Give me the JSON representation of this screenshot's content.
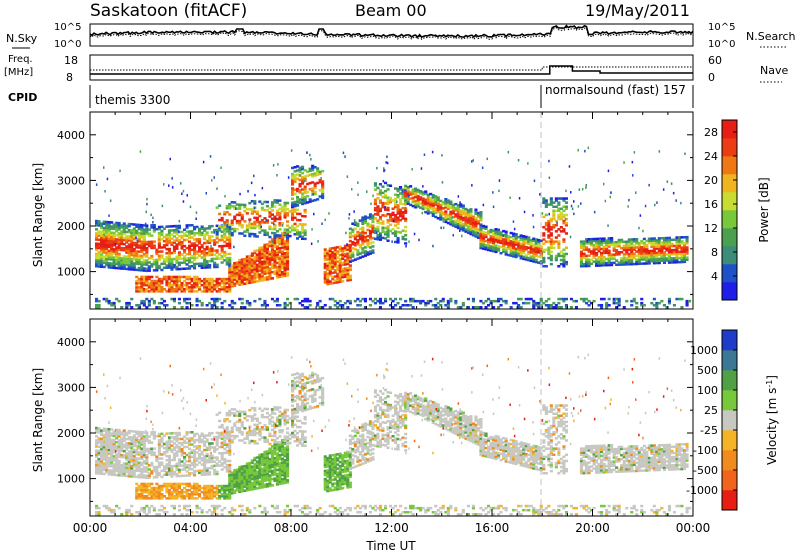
{
  "header": {
    "station": "Saskatoon (fitACF)",
    "beam": "Beam 00",
    "date": "19/May/2011"
  },
  "strips": {
    "noise_left_label": "N.Sky",
    "noise_left_top": "10^5",
    "noise_left_bottom": "10^0",
    "noise_right_top": "10^5",
    "noise_right_bottom": "10^0",
    "noise_right_label": "N.Search",
    "freq_label": "Freq.",
    "freq_unit": "[MHz]",
    "freq_top": "18",
    "freq_bottom": "8",
    "nave_top": "60",
    "nave_bottom": "0",
    "nave_label": "Nave",
    "cpid_label": "CPID",
    "cpid_first": "themis 3300",
    "cpid_second": "normalsound (fast) 157"
  },
  "colors": {
    "power": [
      "#1e1ee6",
      "#1e50c8",
      "#3c8c78",
      "#4ba050",
      "#78c83c",
      "#c8dc32",
      "#f0b41e",
      "#f07814",
      "#eb3c14",
      "#e61e14"
    ],
    "velocity_neg": [
      "#e61e14",
      "#f0641e",
      "#f08c1e",
      "#f5b428"
    ],
    "velocity_ground": "#c8c8c3",
    "velocity_pos": [
      "#78c83c",
      "#50a046",
      "#3c7896",
      "#1e3cc8"
    ]
  },
  "chart_data": [
    {
      "type": "heatmap",
      "title": "",
      "xlabel": "",
      "ylabel": "Slant Range [km]",
      "x_range": [
        "00:00",
        "24:00"
      ],
      "ylim": [
        180,
        4500
      ],
      "y_ticks": [
        "1000",
        "2000",
        "3000",
        "4000"
      ],
      "colorbar": {
        "label": "Power [dB]",
        "ticks": [
          "4",
          "8",
          "12",
          "16",
          "20",
          "24",
          "28"
        ],
        "range": [
          0,
          30
        ]
      }
    },
    {
      "type": "heatmap",
      "title": "",
      "xlabel": "Time UT",
      "ylabel": "Slant Range [km]",
      "x_ticks": [
        "00:00",
        "04:00",
        "08:00",
        "12:00",
        "16:00",
        "20:00",
        "00:00"
      ],
      "ylim": [
        180,
        4500
      ],
      "y_ticks": [
        "1000",
        "2000",
        "3000",
        "4000"
      ],
      "colorbar": {
        "label": "Velocity [m s^-1]",
        "ticks": [
          "1000",
          "500",
          "100",
          "25",
          "-25",
          "-100",
          "-500",
          "-1000"
        ]
      }
    }
  ]
}
